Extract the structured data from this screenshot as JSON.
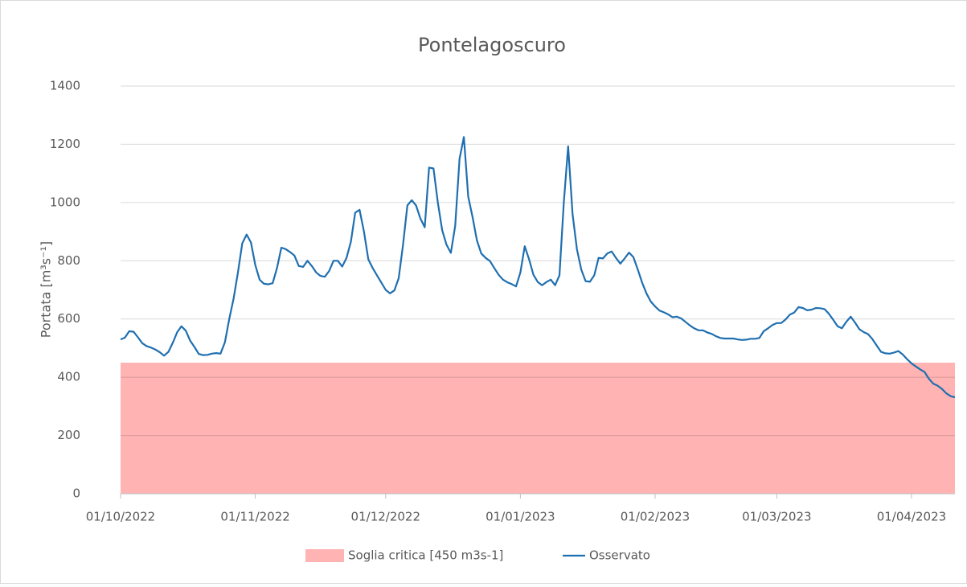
{
  "chart_data": {
    "type": "line",
    "title": "Pontelagoscuro",
    "y_label": "Portata [m³s⁻¹]",
    "x": [
      "01/10/2022",
      "02/10/2022",
      "03/10/2022",
      "04/10/2022",
      "05/10/2022",
      "06/10/2022",
      "07/10/2022",
      "08/10/2022",
      "09/10/2022",
      "10/10/2022",
      "11/10/2022",
      "12/10/2022",
      "13/10/2022",
      "14/10/2022",
      "15/10/2022",
      "16/10/2022",
      "17/10/2022",
      "18/10/2022",
      "19/10/2022",
      "20/10/2022",
      "21/10/2022",
      "22/10/2022",
      "23/10/2022",
      "24/10/2022",
      "25/10/2022",
      "26/10/2022",
      "27/10/2022",
      "28/10/2022",
      "29/10/2022",
      "30/10/2022",
      "31/10/2022",
      "01/11/2022",
      "02/11/2022",
      "03/11/2022",
      "04/11/2022",
      "05/11/2022",
      "06/11/2022",
      "07/11/2022",
      "08/11/2022",
      "09/11/2022",
      "10/11/2022",
      "11/11/2022",
      "12/11/2022",
      "13/11/2022",
      "14/11/2022",
      "15/11/2022",
      "16/11/2022",
      "17/11/2022",
      "18/11/2022",
      "19/11/2022",
      "20/11/2022",
      "21/11/2022",
      "22/11/2022",
      "23/11/2022",
      "24/11/2022",
      "25/11/2022",
      "26/11/2022",
      "27/11/2022",
      "28/11/2022",
      "29/11/2022",
      "30/11/2022",
      "01/12/2022",
      "02/12/2022",
      "03/12/2022",
      "04/12/2022",
      "05/12/2022",
      "06/12/2022",
      "07/12/2022",
      "08/12/2022",
      "09/12/2022",
      "10/12/2022",
      "11/12/2022",
      "12/12/2022",
      "13/12/2022",
      "14/12/2022",
      "15/12/2022",
      "16/12/2022",
      "17/12/2022",
      "18/12/2022",
      "19/12/2022",
      "20/12/2022",
      "21/12/2022",
      "22/12/2022",
      "23/12/2022",
      "24/12/2022",
      "25/12/2022",
      "26/12/2022",
      "27/12/2022",
      "28/12/2022",
      "29/12/2022",
      "30/12/2022",
      "31/12/2022",
      "01/01/2023",
      "02/01/2023",
      "03/01/2023",
      "04/01/2023",
      "05/01/2023",
      "06/01/2023",
      "07/01/2023",
      "08/01/2023",
      "09/01/2023",
      "10/01/2023",
      "11/01/2023",
      "12/01/2023",
      "13/01/2023",
      "14/01/2023",
      "15/01/2023",
      "16/01/2023",
      "17/01/2023",
      "18/01/2023",
      "19/01/2023",
      "20/01/2023",
      "21/01/2023",
      "22/01/2023",
      "23/01/2023",
      "24/01/2023",
      "25/01/2023",
      "26/01/2023",
      "27/01/2023",
      "28/01/2023",
      "29/01/2023",
      "30/01/2023",
      "31/01/2023",
      "01/02/2023",
      "02/02/2023",
      "03/02/2023",
      "04/02/2023",
      "05/02/2023",
      "06/02/2023",
      "07/02/2023",
      "08/02/2023",
      "09/02/2023",
      "10/02/2023",
      "11/02/2023",
      "12/02/2023",
      "13/02/2023",
      "14/02/2023",
      "15/02/2023",
      "16/02/2023",
      "17/02/2023",
      "18/02/2023",
      "19/02/2023",
      "20/02/2023",
      "21/02/2023",
      "22/02/2023",
      "23/02/2023",
      "24/02/2023",
      "25/02/2023",
      "26/02/2023",
      "27/02/2023",
      "28/02/2023",
      "01/03/2023",
      "02/03/2023",
      "03/03/2023",
      "04/03/2023",
      "05/03/2023",
      "06/03/2023",
      "07/03/2023",
      "08/03/2023",
      "09/03/2023",
      "10/03/2023",
      "11/03/2023",
      "12/03/2023",
      "13/03/2023",
      "14/03/2023",
      "15/03/2023",
      "16/03/2023",
      "17/03/2023",
      "18/03/2023",
      "19/03/2023",
      "20/03/2023",
      "21/03/2023",
      "22/03/2023",
      "23/03/2023",
      "24/03/2023",
      "25/03/2023",
      "26/03/2023",
      "27/03/2023",
      "28/03/2023",
      "29/03/2023",
      "30/03/2023",
      "31/03/2023",
      "01/04/2023",
      "02/04/2023",
      "03/04/2023",
      "04/04/2023",
      "05/04/2023",
      "06/04/2023",
      "07/04/2023",
      "08/04/2023",
      "09/04/2023",
      "10/04/2023",
      "11/04/2023"
    ],
    "series": [
      {
        "name": "Osservato",
        "color": "#1f6fb0",
        "values": [
          530,
          536,
          558,
          556,
          537,
          517,
          507,
          502,
          495,
          486,
          474,
          487,
          518,
          554,
          575,
          560,
          526,
          504,
          480,
          476,
          477,
          481,
          483,
          481,
          520,
          600,
          670,
          760,
          860,
          890,
          863,
          785,
          735,
          721,
          719,
          723,
          775,
          845,
          840,
          830,
          818,
          782,
          779,
          800,
          782,
          760,
          748,
          745,
          765,
          800,
          800,
          780,
          810,
          865,
          965,
          975,
          900,
          805,
          775,
          750,
          725,
          700,
          688,
          698,
          740,
          855,
          990,
          1008,
          990,
          945,
          915,
          1120,
          1117,
          1000,
          905,
          855,
          827,
          920,
          1150,
          1225,
          1020,
          950,
          870,
          825,
          810,
          799,
          775,
          752,
          735,
          726,
          720,
          712,
          760,
          850,
          805,
          752,
          727,
          716,
          727,
          735,
          716,
          750,
          1000,
          1193,
          960,
          840,
          770,
          730,
          728,
          750,
          810,
          808,
          825,
          832,
          810,
          790,
          808,
          828,
          813,
          771,
          725,
          688,
          660,
          643,
          629,
          623,
          616,
          606,
          608,
          602,
          590,
          578,
          568,
          561,
          561,
          554,
          549,
          541,
          535,
          533,
          533,
          533,
          530,
          528,
          529,
          532,
          532,
          535,
          558,
          568,
          579,
          586,
          586,
          598,
          615,
          622,
          641,
          638,
          630,
          632,
          638,
          637,
          634,
          618,
          597,
          575,
          568,
          590,
          608,
          588,
          565,
          555,
          548,
          531,
          509,
          487,
          482,
          481,
          485,
          490,
          478,
          462,
          448,
          437,
          427,
          418,
          395,
          378,
          371,
          360,
          345,
          335,
          331
        ]
      }
    ],
    "threshold": {
      "name": "Soglia critica [450 m3s-1]",
      "value": 450,
      "color": "#ffb3b3"
    },
    "xlim": [
      "01/10/2022",
      "11/04/2023"
    ],
    "xticks": [
      "01/10/2022",
      "01/11/2022",
      "01/12/2022",
      "01/01/2023",
      "01/02/2023",
      "01/03/2023",
      "01/04/2023"
    ],
    "ylim": [
      0,
      1400
    ],
    "yticks": [
      0,
      200,
      400,
      600,
      800,
      1000,
      1200,
      1400
    ],
    "grid": true
  }
}
